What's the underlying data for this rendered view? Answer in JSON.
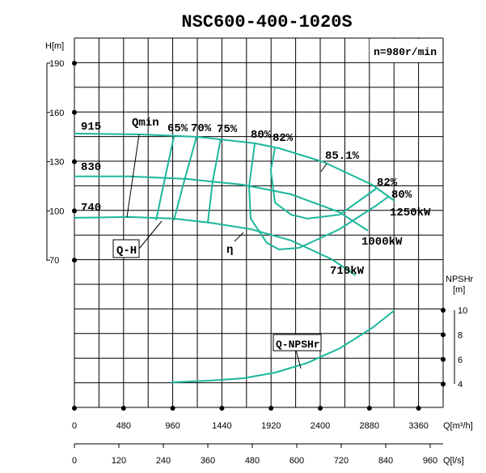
{
  "chart_data": {
    "type": "line",
    "title": "NSC600-400-1020S",
    "speed": "n=980r/min",
    "ylabel": "H[m]",
    "y2label": "NPSHr",
    "y2unit": "[m]",
    "xlabel": "Q[m³/h]",
    "x2label": "Q[l/s]",
    "xlim": [
      0,
      3600
    ],
    "ylim": [
      -20,
      205
    ],
    "y2lim": [
      2,
      10
    ],
    "x_ticks": [
      "0",
      "480",
      "960",
      "1440",
      "1920",
      "2400",
      "2880",
      "3360"
    ],
    "x2_ticks": [
      "0",
      "120",
      "240",
      "360",
      "480",
      "600",
      "720",
      "840",
      "960"
    ],
    "y_ticks": [
      "190",
      "160",
      "130",
      "100",
      "70"
    ],
    "y2_ticks": [
      "10",
      "8",
      "6",
      "4"
    ],
    "qh_series": [
      {
        "name": "915",
        "power": "1250kW",
        "x": [
          0,
          655,
          1208,
          1761,
          1997,
          2432,
          2905,
          3126
        ],
        "y": [
          147.1,
          146.6,
          145.1,
          141.2,
          138.2,
          129.8,
          116,
          106.1
        ]
      },
      {
        "name": "830",
        "power": "1000kW",
        "x": [
          0,
          537,
          1090,
          1642,
          2116,
          2589,
          2866
        ],
        "y": [
          121,
          121,
          119.5,
          116,
          110.1,
          99.2,
          87.9
        ]
      },
      {
        "name": "740",
        "power": "710kW",
        "x": [
          0,
          537,
          971,
          1326,
          1721,
          2116,
          2511,
          2747
        ],
        "y": [
          95.8,
          96.3,
          95.3,
          92.8,
          88.9,
          82,
          70.6,
          60.7
        ]
      }
    ],
    "efficiency_series": [
      {
        "name": "65%",
        "x": [
          971,
          884,
          797
        ],
        "y": [
          145.1,
          120,
          94.3
        ]
      },
      {
        "name": "70%",
        "x": [
          1192,
          1080,
          971
        ],
        "y": [
          145.1,
          120,
          94.3
        ]
      },
      {
        "name": "75%",
        "x": [
          1429,
          1350,
          1303
        ],
        "y": [
          144,
          118,
          92.8
        ]
      },
      {
        "name": "80%",
        "x": [
          1761,
          1705,
          1721,
          1879,
          1997,
          2195,
          2590,
          2945,
          3063
        ],
        "y": [
          141.2,
          115,
          95.3,
          80.5,
          76.5,
          77.5,
          88.9,
          103.2,
          108.6
        ]
      },
      {
        "name": "82%",
        "x": [
          1958,
          1918,
          1958,
          2116,
          2274,
          2590,
          2945
        ],
        "y": [
          138.2,
          124.9,
          105.1,
          97.7,
          95.3,
          97.7,
          113.5
        ]
      }
    ],
    "npsh_series": {
      "name": "Q-NPSHr",
      "x": [
        947,
        1326,
        1642,
        1958,
        2274,
        2590,
        2905,
        3126
      ],
      "y": [
        4.14,
        4.28,
        4.47,
        4.93,
        5.72,
        6.9,
        8.55,
        10
      ]
    },
    "annotations": {
      "qmin": "Qmin",
      "qh": "Q-H",
      "eta": "η",
      "best": "85.1%",
      "right82": "82%",
      "right80": "80%",
      "e80": "80%",
      "e82": "82%"
    }
  }
}
